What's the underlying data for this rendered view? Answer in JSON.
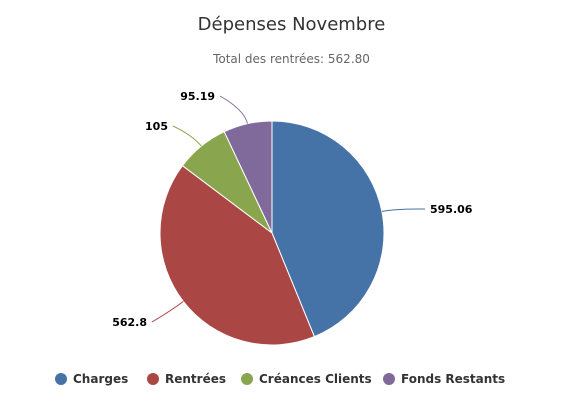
{
  "chart_data": {
    "type": "pie",
    "title": "Dépenses Novembre",
    "subtitle": "Total des rentrées: 562.80",
    "slices": [
      {
        "name": "Charges",
        "value": 595.06,
        "label": "595.06",
        "color": "#4572A7"
      },
      {
        "name": "Rentrées",
        "value": 562.8,
        "label": "562.8",
        "color": "#AA4643"
      },
      {
        "name": "Créances Clients",
        "value": 105,
        "label": "105",
        "color": "#89A54E"
      },
      {
        "name": "Fonds Restants",
        "value": 95.19,
        "label": "95.19",
        "color": "#80699B"
      }
    ],
    "legend_position": "bottom"
  }
}
